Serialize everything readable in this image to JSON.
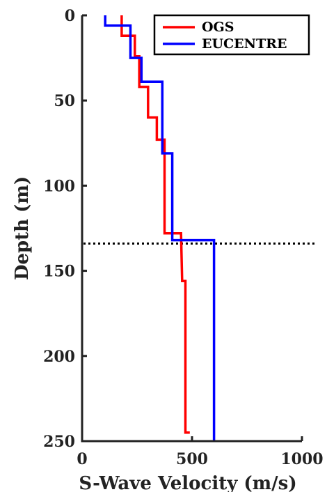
{
  "chart_data": {
    "type": "line",
    "title": "",
    "xlabel": "S-Wave Velocity (m/s)",
    "ylabel": "Depth (m)",
    "xlim": [
      0,
      1000
    ],
    "ylim": [
      0,
      250
    ],
    "y_inverted": true,
    "xticks": [
      "0",
      "500",
      "1000"
    ],
    "yticks": [
      "0",
      "50",
      "100",
      "150",
      "200",
      "250"
    ],
    "xtick_values": [
      0,
      500,
      1000
    ],
    "ytick_values": [
      0,
      50,
      100,
      150,
      200,
      250
    ],
    "grid": false,
    "legend_position": "top-right",
    "reference_line": {
      "depth": 134,
      "style": "dotted",
      "color": "#000000"
    },
    "series": [
      {
        "name": "OGS",
        "color": "#ff0000",
        "x": [
          180,
          180,
          200,
          200,
          240,
          240,
          260,
          260,
          260,
          300,
          300,
          320,
          320,
          340,
          340,
          375,
          375,
          375,
          375,
          450,
          450,
          455,
          455,
          470,
          470,
          490
        ],
        "y": [
          0,
          12,
          12,
          12,
          12,
          24,
          24,
          24,
          42,
          42,
          60,
          60,
          60,
          60,
          73,
          73,
          80,
          80,
          128,
          128,
          128,
          156,
          156,
          156,
          245,
          245
        ]
      },
      {
        "name": "EUCENTRE",
        "color": "#0000ff",
        "x": [
          105,
          105,
          210,
          210,
          220,
          220,
          270,
          270,
          365,
          365,
          370,
          370,
          410,
          410,
          600,
          600,
          600
        ],
        "y": [
          0,
          6,
          6,
          6,
          6,
          25,
          25,
          39,
          39,
          81,
          81,
          81,
          81,
          132,
          132,
          250,
          250
        ]
      }
    ]
  }
}
